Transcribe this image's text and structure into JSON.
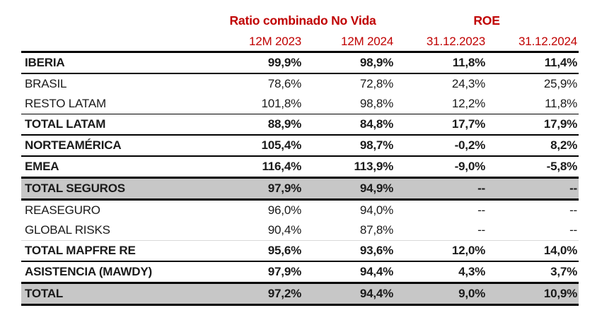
{
  "colors": {
    "header_red": "#c00000",
    "highlight_gray": "#c7c7c7",
    "rule_black": "#000000",
    "text_black": "#1a1a1a"
  },
  "chart_data": {
    "type": "table",
    "column_groups": [
      {
        "label": "Ratio combinado No Vida",
        "span": 2
      },
      {
        "label": "ROE",
        "span": 2
      }
    ],
    "columns": [
      "12M 2023",
      "12M 2024",
      "31.12.2023",
      "31.12.2024"
    ],
    "rows": [
      {
        "label": "IBERIA",
        "values": [
          "99,9%",
          "98,9%",
          "11,8%",
          "11,4%"
        ],
        "bold": true,
        "highlight": false
      },
      {
        "label": "BRASIL",
        "values": [
          "78,6%",
          "72,8%",
          "24,3%",
          "25,9%"
        ],
        "bold": false,
        "highlight": false
      },
      {
        "label": "RESTO LATAM",
        "values": [
          "101,8%",
          "98,8%",
          "12,2%",
          "11,8%"
        ],
        "bold": false,
        "highlight": false
      },
      {
        "label": "TOTAL LATAM",
        "values": [
          "88,9%",
          "84,8%",
          "17,7%",
          "17,9%"
        ],
        "bold": true,
        "highlight": false
      },
      {
        "label": "NORTEAMÉRICA",
        "values": [
          "105,4%",
          "98,7%",
          "-0,2%",
          "8,2%"
        ],
        "bold": true,
        "highlight": false
      },
      {
        "label": "EMEA",
        "values": [
          "116,4%",
          "113,9%",
          "-9,0%",
          "-5,8%"
        ],
        "bold": true,
        "highlight": false
      },
      {
        "label": "TOTAL SEGUROS",
        "values": [
          "97,9%",
          "94,9%",
          "--",
          "--"
        ],
        "bold": true,
        "highlight": true
      },
      {
        "label": "REASEGURO",
        "values": [
          "96,0%",
          "94,0%",
          "--",
          "--"
        ],
        "bold": false,
        "highlight": false
      },
      {
        "label": "GLOBAL RISKS",
        "values": [
          "90,4%",
          "87,8%",
          "--",
          "--"
        ],
        "bold": false,
        "highlight": false
      },
      {
        "label": "TOTAL MAPFRE RE",
        "values": [
          "95,6%",
          "93,6%",
          "12,0%",
          "14,0%"
        ],
        "bold": true,
        "highlight": false
      },
      {
        "label": "ASISTENCIA (MAWDY)",
        "values": [
          "97,9%",
          "94,4%",
          "4,3%",
          "3,7%"
        ],
        "bold": true,
        "highlight": false
      },
      {
        "label": "TOTAL",
        "values": [
          "97,2%",
          "94,4%",
          "9,0%",
          "10,9%"
        ],
        "bold": true,
        "highlight": true
      }
    ]
  }
}
